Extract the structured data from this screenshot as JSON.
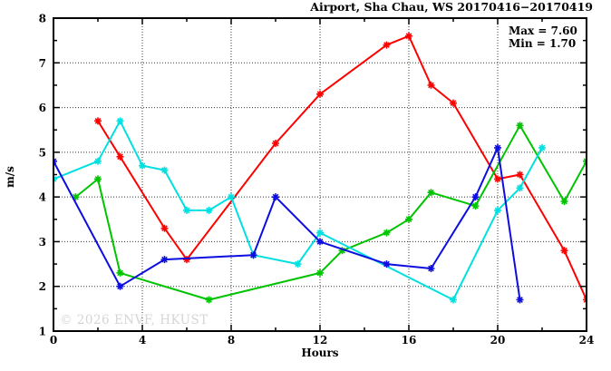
{
  "header": {
    "title": "Airport, Sha Chau, WS 20170416−20170419"
  },
  "annotation": {
    "max": "Max = 7.60",
    "min": "Min = 1.70"
  },
  "watermark": "© 2026 ENVF, HKUST",
  "chart_data": {
    "type": "line",
    "title": "Airport, Sha Chau, WS 20170416−20170419",
    "xlabel": "Hours",
    "ylabel": "m/s",
    "xlim": [
      0,
      24
    ],
    "ylim": [
      1,
      8
    ],
    "x_major_ticks": [
      0,
      4,
      8,
      12,
      16,
      20,
      24
    ],
    "x_minor_step": 2,
    "y_major_ticks": [
      1,
      2,
      3,
      4,
      5,
      6,
      7,
      8
    ],
    "y_minor_step": 0.5,
    "grid": true,
    "legend": "none",
    "stat_max": 7.6,
    "stat_min": 1.7,
    "series": [
      {
        "name": "ws-day1-red",
        "color": "#ff0000",
        "points": [
          [
            2,
            5.7
          ],
          [
            3,
            4.9
          ],
          [
            5,
            3.3
          ],
          [
            6,
            2.6
          ],
          [
            10,
            5.2
          ],
          [
            12,
            6.3
          ],
          [
            15,
            7.4
          ],
          [
            16,
            7.6
          ],
          [
            17,
            6.5
          ],
          [
            18,
            6.1
          ],
          [
            20,
            4.4
          ],
          [
            21,
            4.5
          ],
          [
            23,
            2.8
          ],
          [
            24,
            1.7
          ]
        ]
      },
      {
        "name": "ws-day2-green",
        "color": "#00c400",
        "points": [
          [
            1,
            4.0
          ],
          [
            2,
            4.4
          ],
          [
            3,
            2.3
          ],
          [
            7,
            1.7
          ],
          [
            12,
            2.3
          ],
          [
            13,
            2.8
          ],
          [
            15,
            3.2
          ],
          [
            16,
            3.5
          ],
          [
            17,
            4.1
          ],
          [
            19,
            3.8
          ],
          [
            21,
            5.6
          ],
          [
            23,
            3.9
          ],
          [
            24,
            4.8
          ]
        ]
      },
      {
        "name": "ws-day4-cyan",
        "color": "#00e0e0",
        "points": [
          [
            0,
            4.4
          ],
          [
            2,
            4.8
          ],
          [
            3,
            5.7
          ],
          [
            4,
            4.7
          ],
          [
            5,
            4.6
          ],
          [
            6,
            3.7
          ],
          [
            7,
            3.7
          ],
          [
            8,
            4.0
          ],
          [
            9,
            2.7
          ],
          [
            11,
            2.5
          ],
          [
            12,
            3.2
          ],
          [
            18,
            1.7
          ],
          [
            20,
            3.7
          ],
          [
            21,
            4.2
          ],
          [
            22,
            5.1
          ]
        ]
      },
      {
        "name": "ws-day3-blue",
        "color": "#0d0de0",
        "points": [
          [
            0,
            4.8
          ],
          [
            3,
            2.0
          ],
          [
            5,
            2.6
          ],
          [
            9,
            2.7
          ],
          [
            10,
            4.0
          ],
          [
            12,
            3.0
          ],
          [
            15,
            2.5
          ],
          [
            17,
            2.4
          ],
          [
            19,
            4.0
          ],
          [
            20,
            5.1
          ],
          [
            21,
            1.7
          ]
        ]
      }
    ]
  }
}
